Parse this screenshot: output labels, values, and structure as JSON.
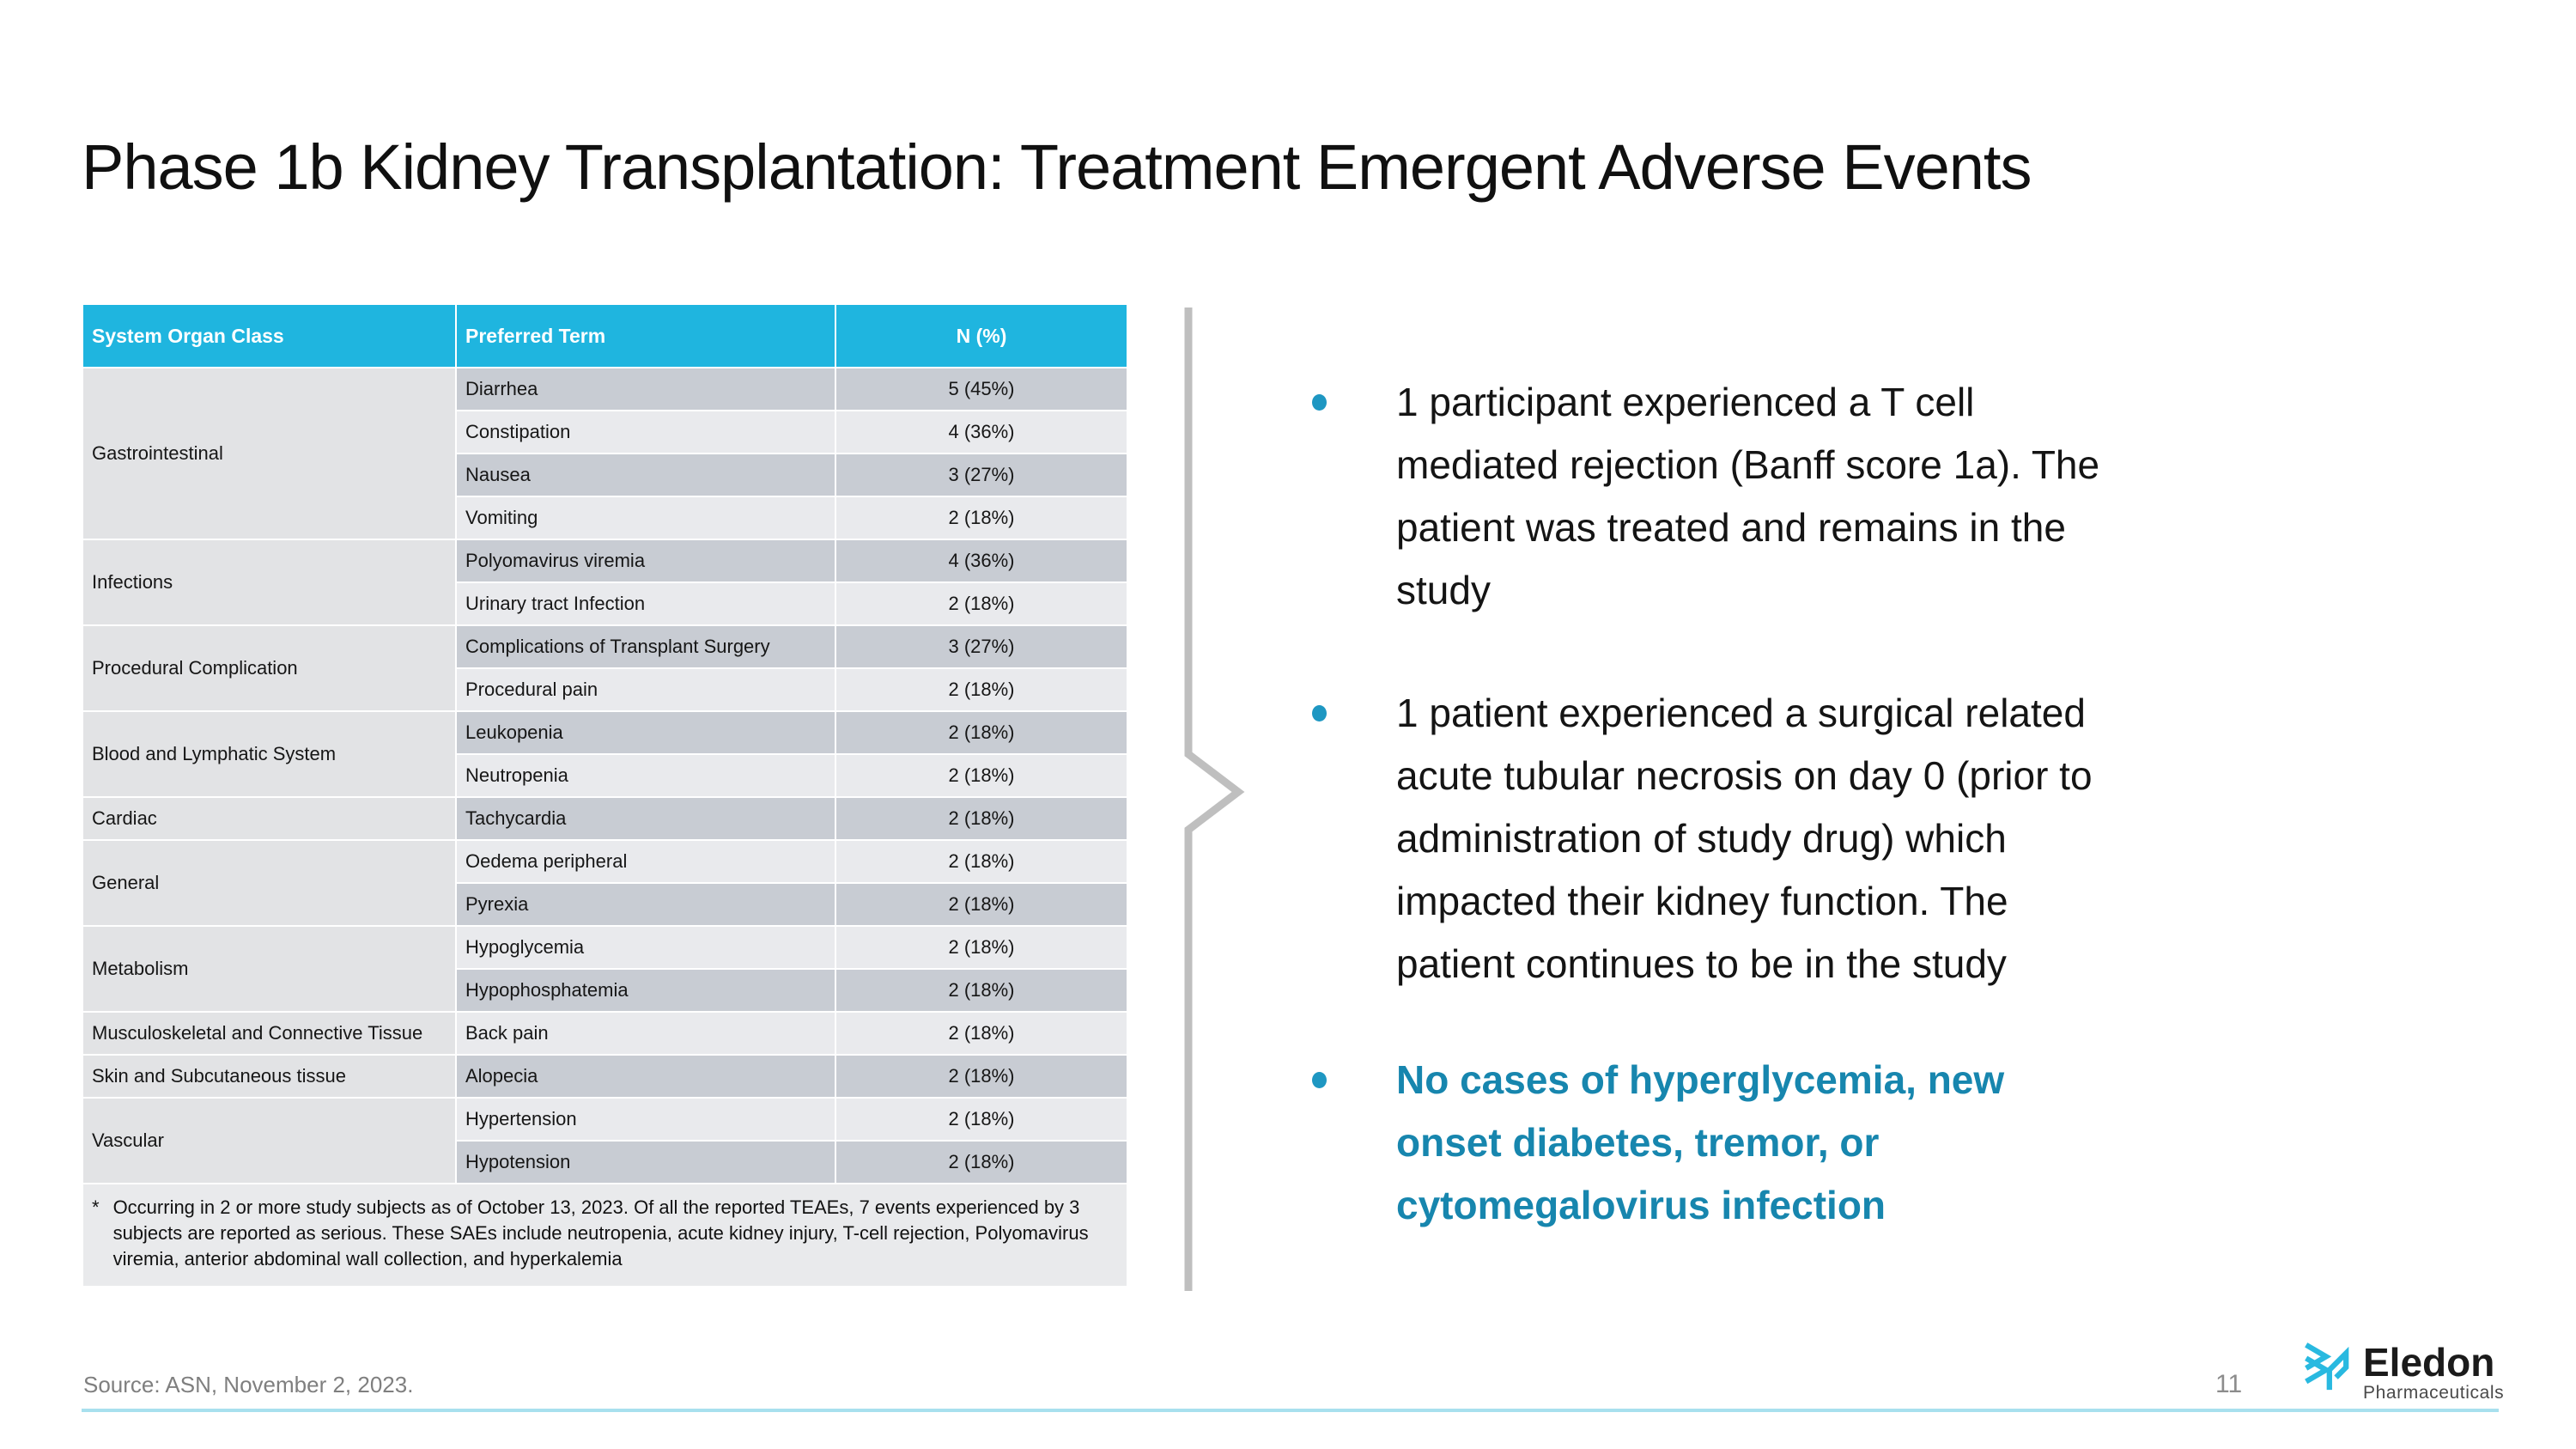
{
  "title": "Phase 1b Kidney Transplantation: Treatment Emergent Adverse Events",
  "table": {
    "headers": [
      "System Organ Class",
      "Preferred Term",
      "N (%)"
    ],
    "groups": [
      {
        "organ_class": "Gastrointestinal",
        "terms": [
          {
            "term": "Diarrhea",
            "n": "5 (45%)"
          },
          {
            "term": "Constipation",
            "n": "4 (36%)"
          },
          {
            "term": "Nausea",
            "n": "3 (27%)"
          },
          {
            "term": "Vomiting",
            "n": "2 (18%)"
          }
        ]
      },
      {
        "organ_class": "Infections",
        "terms": [
          {
            "term": "Polyomavirus viremia",
            "n": "4 (36%)"
          },
          {
            "term": "Urinary tract Infection",
            "n": "2 (18%)"
          }
        ]
      },
      {
        "organ_class": "Procedural Complication",
        "terms": [
          {
            "term": "Complications of Transplant Surgery",
            "n": "3 (27%)"
          },
          {
            "term": "Procedural pain",
            "n": "2 (18%)"
          }
        ]
      },
      {
        "organ_class": "Blood and Lymphatic System",
        "terms": [
          {
            "term": "Leukopenia",
            "n": "2 (18%)"
          },
          {
            "term": "Neutropenia",
            "n": "2 (18%)"
          }
        ]
      },
      {
        "organ_class": "Cardiac",
        "terms": [
          {
            "term": "Tachycardia",
            "n": "2 (18%)"
          }
        ]
      },
      {
        "organ_class": "General",
        "terms": [
          {
            "term": "Oedema peripheral",
            "n": "2 (18%)"
          },
          {
            "term": "Pyrexia",
            "n": "2 (18%)"
          }
        ]
      },
      {
        "organ_class": "Metabolism",
        "terms": [
          {
            "term": "Hypoglycemia",
            "n": "2 (18%)"
          },
          {
            "term": "Hypophosphatemia",
            "n": "2 (18%)"
          }
        ]
      },
      {
        "organ_class": "Musculoskeletal and Connective Tissue",
        "terms": [
          {
            "term": "Back pain",
            "n": "2 (18%)"
          }
        ]
      },
      {
        "organ_class": "Skin and Subcutaneous tissue",
        "terms": [
          {
            "term": "Alopecia",
            "n": "2 (18%)"
          }
        ]
      },
      {
        "organ_class": "Vascular",
        "terms": [
          {
            "term": "Hypertension",
            "n": "2 (18%)"
          },
          {
            "term": "Hypotension",
            "n": "2 (18%)"
          }
        ]
      }
    ],
    "footnote_marker": "*",
    "footnote": "Occurring in 2 or more study subjects as of October 13, 2023. Of all the reported TEAEs, 7 events experienced by 3 subjects are reported as serious. These SAEs include neutropenia, acute kidney injury, T-cell rejection, Polyomavirus viremia, anterior abdominal wall collection, and hyperkalemia"
  },
  "bullets": [
    {
      "emphasis": false,
      "lines": [
        "1 participant experienced a T cell",
        "mediated rejection (Banff score 1a). The",
        "patient was treated and remains in the",
        "study"
      ]
    },
    {
      "emphasis": false,
      "lines": [
        "1 patient experienced a surgical related",
        "acute tubular necrosis on day 0 (prior to",
        "administration of study drug) which",
        "impacted their kidney function. The",
        "patient continues to be in the study"
      ]
    },
    {
      "emphasis": true,
      "lines": [
        "No cases of hyperglycemia, new",
        "onset diabetes, tremor, or",
        "cytomegalovirus infection"
      ]
    }
  ],
  "footer": {
    "source": "Source: ASN, November 2, 2023.",
    "page_number": "11",
    "logo_word": "Eledon",
    "logo_sub": "Pharmaceuticals"
  },
  "colors": {
    "header_cyan": "#1FB5DF",
    "row_dark": "#C8CCD3",
    "row_light": "#E9EAED",
    "organ_class_gray": "#E2E3E5",
    "emphasis_teal": "#1786AE",
    "bullet_dot": "#1E97C2",
    "bracket_gray": "#BFBFBF",
    "footer_line_cyan": "#2FB4D6",
    "logo_cyan": "#29B9E0"
  }
}
